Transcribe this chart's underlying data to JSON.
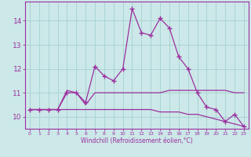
{
  "xlabel": "Windchill (Refroidissement éolien,°C)",
  "x": [
    0,
    1,
    2,
    3,
    4,
    5,
    6,
    7,
    8,
    9,
    10,
    11,
    12,
    13,
    14,
    15,
    16,
    17,
    18,
    19,
    20,
    21,
    22,
    23
  ],
  "line1": [
    10.3,
    10.3,
    10.3,
    10.3,
    11.0,
    11.0,
    10.6,
    12.1,
    11.7,
    11.5,
    12.0,
    14.5,
    13.5,
    13.4,
    14.1,
    13.7,
    12.5,
    12.0,
    11.0,
    10.4,
    10.3,
    9.8,
    10.1,
    9.6
  ],
  "line2": [
    10.3,
    10.3,
    10.3,
    10.3,
    11.1,
    11.0,
    10.5,
    11.0,
    11.0,
    11.0,
    11.0,
    11.0,
    11.0,
    11.0,
    11.0,
    11.1,
    11.1,
    11.1,
    11.1,
    11.1,
    11.1,
    11.1,
    11.0,
    11.0
  ],
  "line3": [
    10.3,
    10.3,
    10.3,
    10.3,
    10.3,
    10.3,
    10.3,
    10.3,
    10.3,
    10.3,
    10.3,
    10.3,
    10.3,
    10.3,
    10.2,
    10.2,
    10.2,
    10.1,
    10.1,
    10.0,
    9.9,
    9.8,
    9.7,
    9.6
  ],
  "ylim": [
    9.5,
    14.8
  ],
  "yticks": [
    10,
    11,
    12,
    13,
    14
  ],
  "line_color": "#9b30a0",
  "bg_color": "#cce8e8",
  "grid_color": "#aad4d4"
}
